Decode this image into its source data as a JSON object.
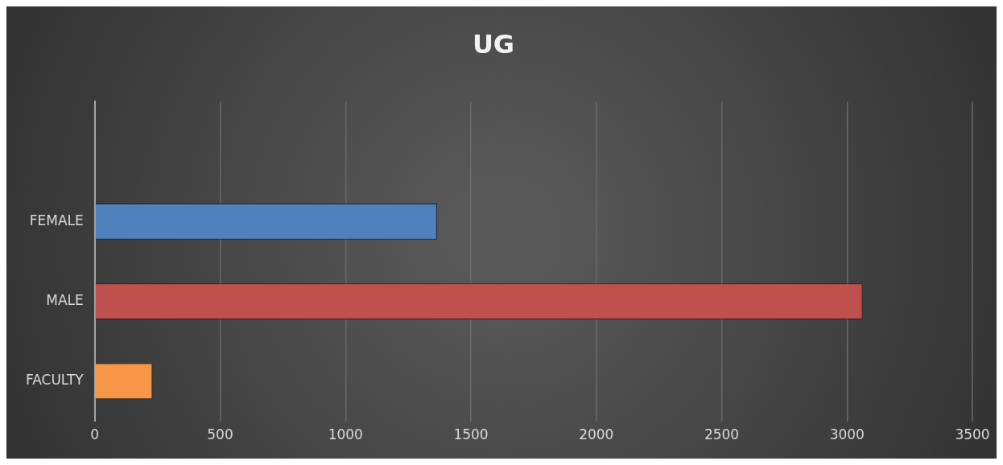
{
  "chart_data": {
    "type": "bar",
    "orientation": "horizontal",
    "title": "UG",
    "categories": [
      null,
      "FEMALE",
      "MALE",
      "FACULTY"
    ],
    "values": [
      null,
      1365,
      3062,
      230
    ],
    "colors": [
      "#4f81bd",
      "#4f81bd",
      "#c0504d",
      "#f79646"
    ],
    "xlim": [
      0,
      3500
    ],
    "xticks": [
      0,
      500,
      1000,
      1500,
      2000,
      2500,
      3000,
      3500
    ],
    "grid": "x",
    "legend": false
  }
}
